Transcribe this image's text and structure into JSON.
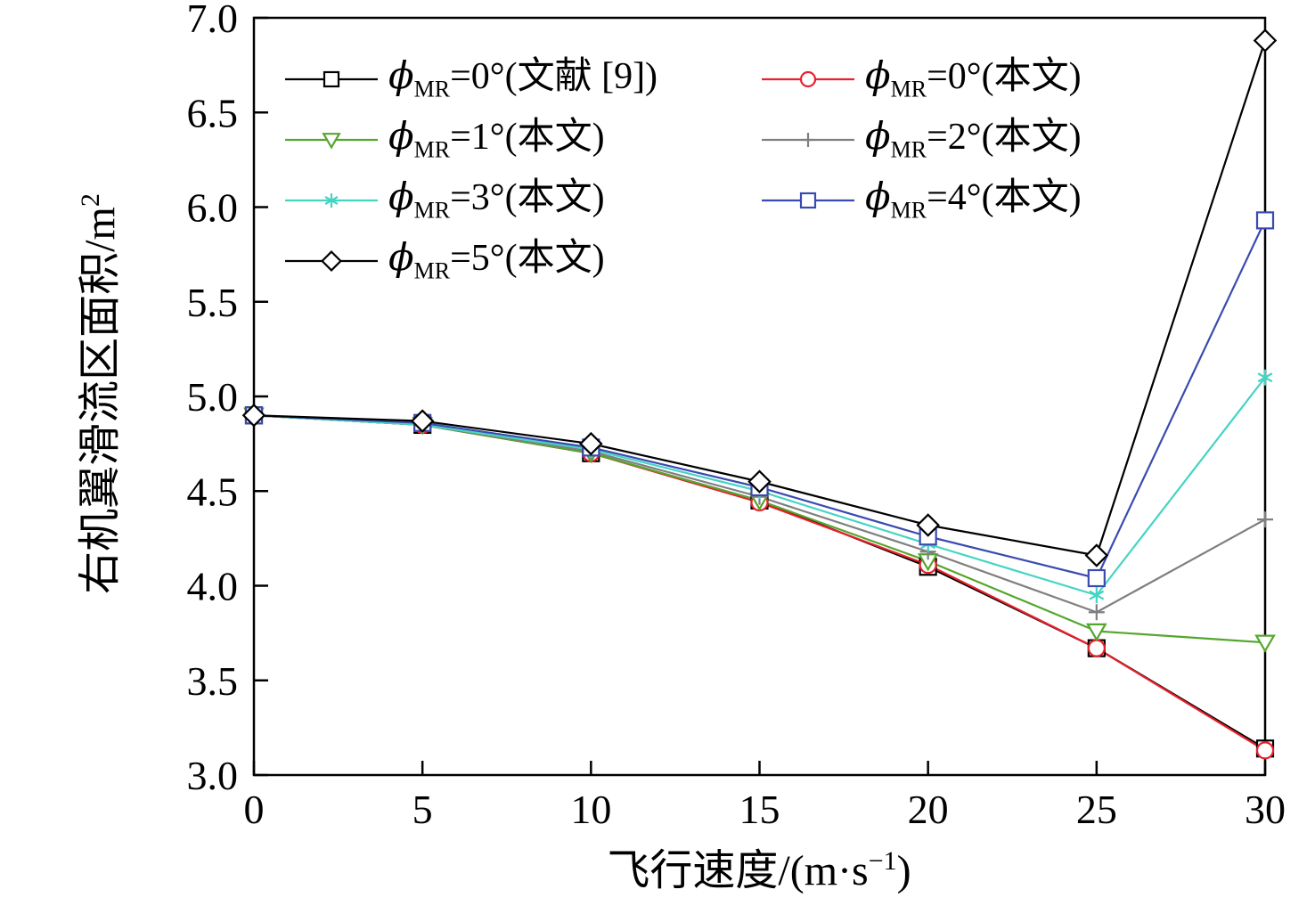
{
  "chart_data": {
    "type": "line",
    "x": [
      0,
      5,
      10,
      15,
      20,
      25,
      30
    ],
    "xlim": [
      0,
      30
    ],
    "ylim": [
      3.0,
      7.0
    ],
    "xtick_values": [
      0,
      5,
      10,
      15,
      20,
      25,
      30
    ],
    "xticks": [
      "0",
      "5",
      "10",
      "15",
      "20",
      "25",
      "30"
    ],
    "ytick_values": [
      3.0,
      3.5,
      4.0,
      4.5,
      5.0,
      5.5,
      6.0,
      6.5,
      7.0
    ],
    "yticks": [
      "3.0",
      "3.5",
      "4.0",
      "4.5",
      "5.0",
      "5.5",
      "6.0",
      "6.5",
      "7.0"
    ],
    "xlabel": {
      "pre": "飞行速度/(m·s",
      "sup": "−1",
      "post": ")"
    },
    "ylabel": {
      "pre": "右机翼滑流区面积/m",
      "sup": "2"
    },
    "grid": false,
    "legend_position": "upper-left-two-columns",
    "axis_color": "#000000",
    "series": [
      {
        "name": "phi-mr-0-ref9",
        "color": "#000000",
        "marker": "square",
        "legend": {
          "phi": "ϕ",
          "sub": "MR",
          "rest": "=0°(文献 [9])"
        },
        "values": [
          4.9,
          4.85,
          4.7,
          4.45,
          4.1,
          3.67,
          3.14
        ]
      },
      {
        "name": "phi-mr-0-this",
        "color": "#e8202c",
        "marker": "circle",
        "legend": {
          "phi": "ϕ",
          "sub": "MR",
          "rest": "=0°(本文)"
        },
        "values": [
          4.9,
          4.85,
          4.7,
          4.44,
          4.11,
          3.67,
          3.13
        ]
      },
      {
        "name": "phi-mr-1-this",
        "color": "#55a62e",
        "marker": "triangle-down",
        "legend": {
          "phi": "ϕ",
          "sub": "MR",
          "rest": "=1°(本文)"
        },
        "values": [
          4.9,
          4.85,
          4.7,
          4.45,
          4.13,
          3.76,
          3.7
        ]
      },
      {
        "name": "phi-mr-2-this",
        "color": "#7f7f7f",
        "marker": "plus",
        "legend": {
          "phi": "ϕ",
          "sub": "MR",
          "rest": "=2°(本文)"
        },
        "values": [
          4.9,
          4.85,
          4.71,
          4.47,
          4.18,
          3.86,
          4.35
        ]
      },
      {
        "name": "phi-mr-3-this",
        "color": "#45d4c4",
        "marker": "asterisk",
        "legend": {
          "phi": "ϕ",
          "sub": "MR",
          "rest": "=3°(本文)"
        },
        "values": [
          4.9,
          4.85,
          4.72,
          4.5,
          4.22,
          3.95,
          5.1
        ]
      },
      {
        "name": "phi-mr-4-this",
        "color": "#3a4bb0",
        "marker": "square",
        "legend": {
          "phi": "ϕ",
          "sub": "MR",
          "rest": "=4°(本文)"
        },
        "values": [
          4.9,
          4.86,
          4.73,
          4.52,
          4.26,
          4.04,
          5.93
        ]
      },
      {
        "name": "phi-mr-5-this",
        "color": "#000000",
        "marker": "diamond",
        "legend": {
          "phi": "ϕ",
          "sub": "MR",
          "rest": "=5°(本文)"
        },
        "values": [
          4.9,
          4.87,
          4.75,
          4.55,
          4.32,
          4.16,
          6.88
        ]
      }
    ]
  }
}
